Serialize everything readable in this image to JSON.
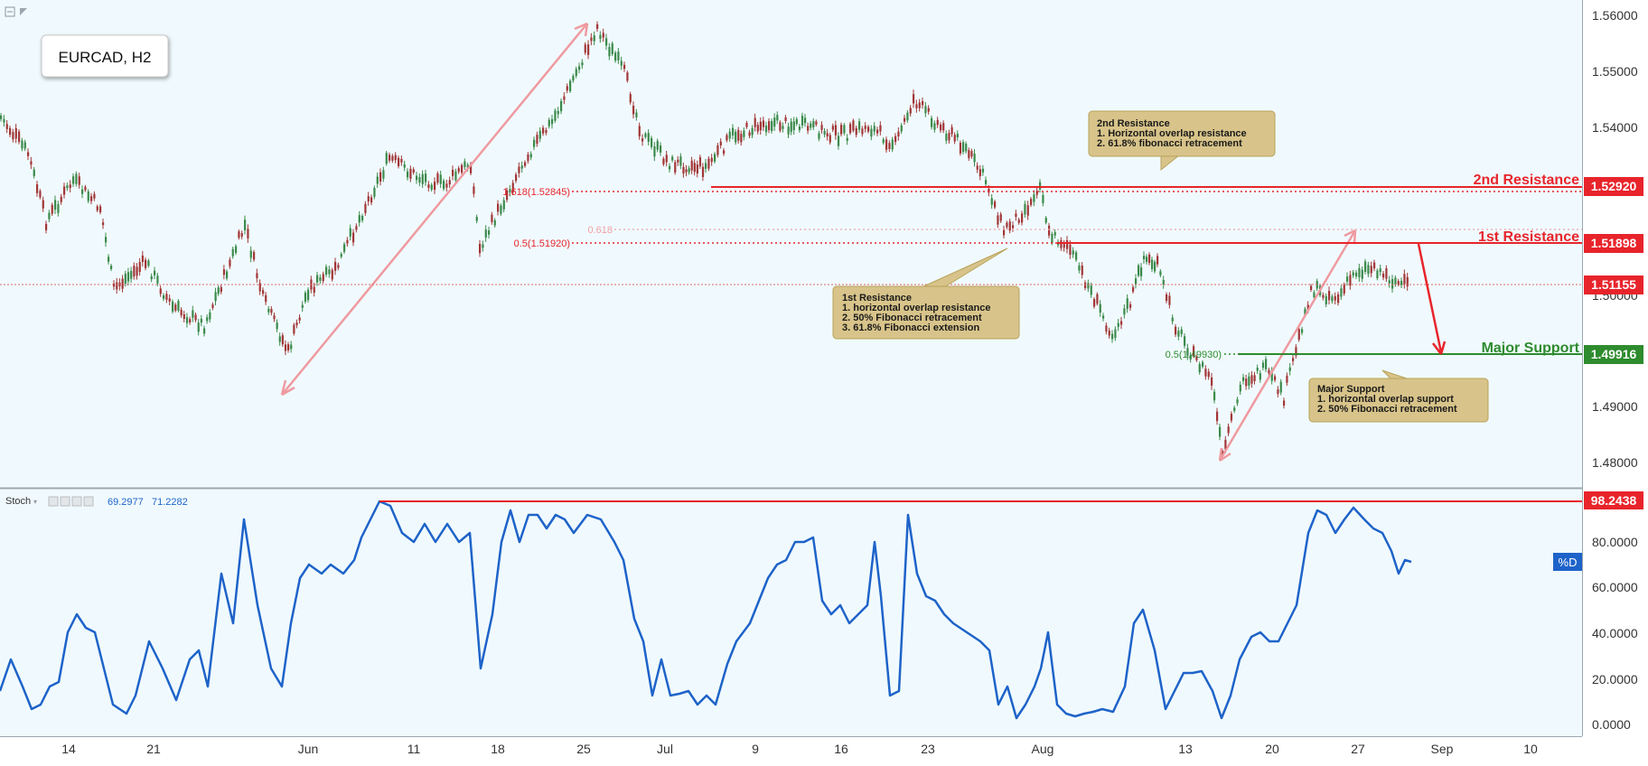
{
  "symbol_label": "EURCAD, H2",
  "colors": {
    "bg": "#f0fafe",
    "candle_up": "#3b8a4a",
    "candle_down": "#a23636",
    "resistance": "#e8242b",
    "support": "#2e8b2e",
    "stoch_line": "#1e63c9",
    "arrow_pink": "#ef9aa0",
    "note_bg": "#d8c48a",
    "note_border": "#b9a25a"
  },
  "price_axis": {
    "ticks": [
      "1.56000",
      "1.55000",
      "1.54000",
      "1.50000",
      "1.49000",
      "1.48000"
    ],
    "badges": {
      "r2": "1.52920",
      "r1": "1.51898",
      "current": "1.51155",
      "support": "1.49916"
    }
  },
  "levels": {
    "r2_label": "2nd Resistance",
    "r1_label": "1st Resistance",
    "support_label": "Major Support",
    "fib_618_ext": "1.618(1.52845)",
    "fib_618": "0.618",
    "fib_05": "0.5(1.51920)",
    "fib_05_support": "0.5(1.49930)"
  },
  "notes": {
    "r2": {
      "title": "2nd Resistance",
      "lines": [
        "1. Horizontal overlap resistance",
        "2. 61.8% fibonacci retracement"
      ]
    },
    "r1": {
      "title": "1st Resistance",
      "lines": [
        "1. horizontal overlap resistance",
        "2. 50% Fibonacci retracement",
        "3. 61.8% Fibonacci extension"
      ]
    },
    "support": {
      "title": "Major Support",
      "lines": [
        "1. horizontal overlap support",
        "2. 50% Fibonacci retracement"
      ]
    }
  },
  "stoch": {
    "label": "Stoch",
    "value_k": "69.2977",
    "value_d": "71.2282",
    "axis_ticks": [
      "80.0000",
      "60.0000",
      "40.0000",
      "20.0000",
      "0.0000"
    ],
    "badge_top": "98.2438",
    "d_tag": "%D"
  },
  "time_axis": [
    "14",
    "21",
    "Jun",
    "11",
    "18",
    "25",
    "Jul",
    "9",
    "16",
    "23",
    "Aug",
    "13",
    "20",
    "27",
    "Sep",
    "10"
  ]
}
